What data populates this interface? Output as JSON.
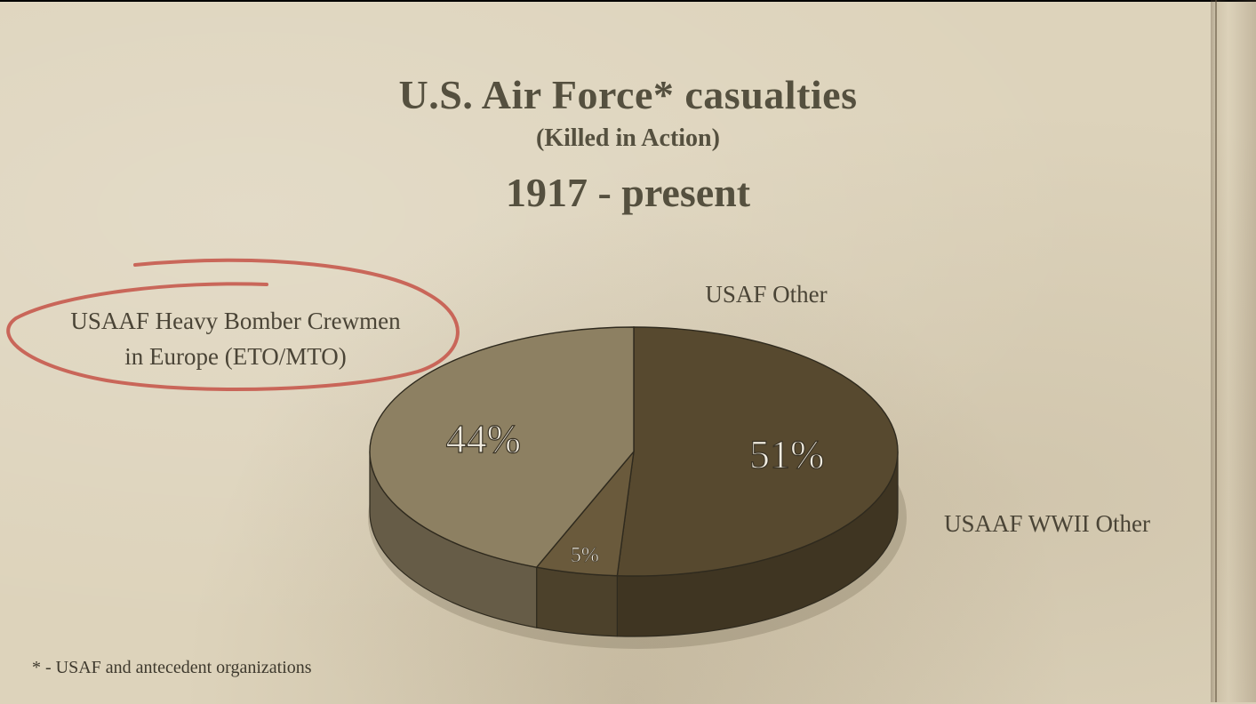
{
  "chart_data": {
    "type": "pie",
    "title": "U.S. Air Force* casualties",
    "subtitle": "(Killed in Action)",
    "period": "1917 - present",
    "slices": [
      {
        "label": "USAAF Heavy Bomber Crewmen in Europe (ETO/MTO)",
        "label_lines": [
          "USAAF Heavy Bomber Crewmen",
          "in Europe (ETO/MTO)"
        ],
        "value": 51,
        "value_label": "51%",
        "color": "#57492f"
      },
      {
        "label": "USAF Other",
        "label_lines": [
          "USAF Other"
        ],
        "value": 5,
        "value_label": "5%",
        "color": "#6a5a3c"
      },
      {
        "label": "USAAF WWII Other",
        "label_lines": [
          "USAAF WWII Other"
        ],
        "value": 44,
        "value_label": "44%",
        "color": "#8d8062"
      }
    ],
    "highlight_color": "#c65a4e",
    "footnote": "* - USAF and antecedent organizations"
  }
}
